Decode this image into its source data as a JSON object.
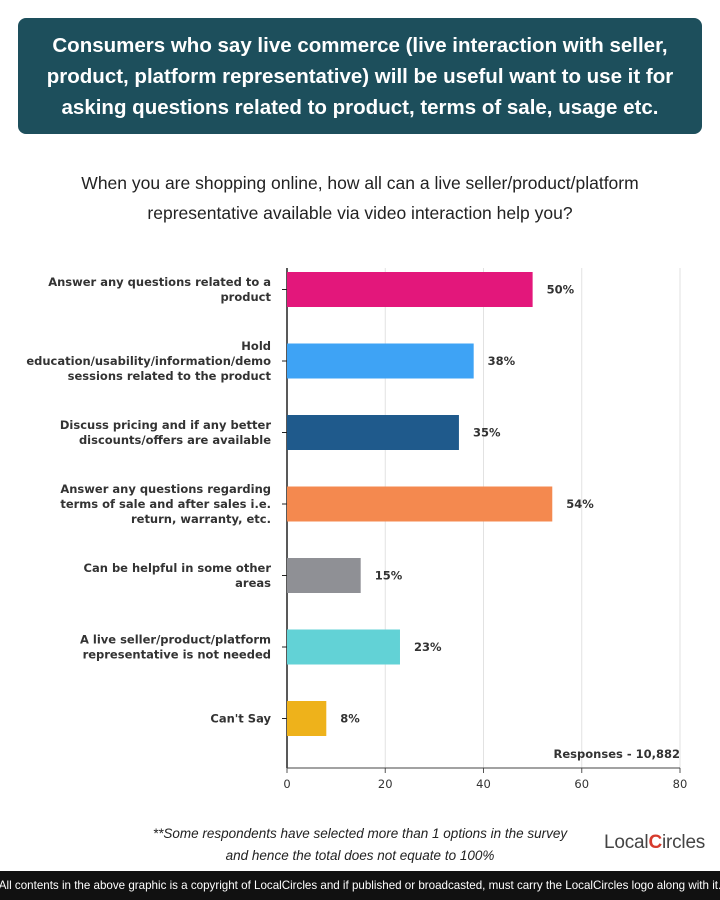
{
  "header": {
    "title": "Consumers who say live commerce (live interaction with seller, product, platform representative) will be useful want to use it for asking questions related to product, terms of sale, usage etc."
  },
  "question": "When you are shopping online, how all can a live seller/product/platform representative available via video interaction help you?",
  "chart_data": {
    "type": "bar",
    "orientation": "horizontal",
    "categories": [
      [
        "Answer any questions related to a",
        "product"
      ],
      [
        "Hold",
        "education/usability/information/demo",
        "sessions related to the product"
      ],
      [
        "Discuss pricing and if any better",
        "discounts/offers are available"
      ],
      [
        "Answer any questions regarding",
        "terms of sale and after sales i.e.",
        "return, warranty, etc."
      ],
      [
        "Can be helpful in some other",
        "areas"
      ],
      [
        "A live seller/product/platform",
        "representative is not needed"
      ],
      [
        "Can't Say"
      ]
    ],
    "values": [
      50,
      38,
      35,
      54,
      15,
      23,
      8
    ],
    "value_labels": [
      "50%",
      "38%",
      "35%",
      "54%",
      "15%",
      "23%",
      "8%"
    ],
    "colors": [
      "#e3177b",
      "#3ea3f5",
      "#1f5a8c",
      "#f4894f",
      "#8f9095",
      "#62d2d6",
      "#eeb21b"
    ],
    "xlim": [
      0,
      80
    ],
    "xticks": [
      0,
      20,
      40,
      60,
      80
    ],
    "grid": true,
    "annotation": "Responses - 10,882"
  },
  "footnote": {
    "line1": "**Some respondents have selected more than 1 options in the survey",
    "line2": "and hence the total does not equate to 100%"
  },
  "logo": {
    "part1": "Local",
    "mark": "C",
    "part2": "ircles"
  },
  "footer": "All contents in the above graphic is a copyright of LocalCircles and if published or broadcasted, must carry the LocalCircles logo along with it."
}
